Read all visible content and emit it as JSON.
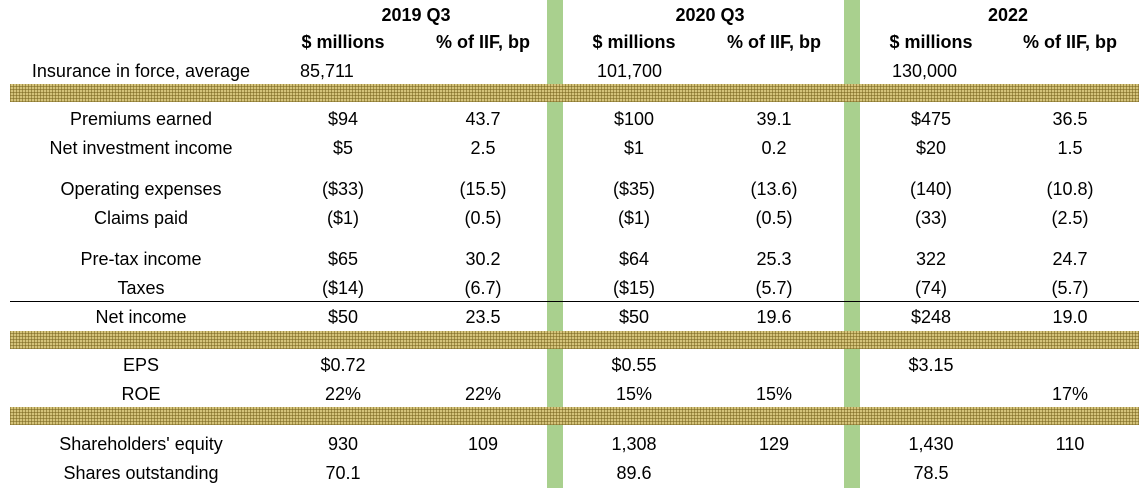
{
  "headers": {
    "periods": [
      "2019 Q3",
      "2020 Q3",
      "2022"
    ],
    "sub": [
      "$ millions",
      "% of IIF, bp"
    ]
  },
  "iif": {
    "label": "Insurance in force, average",
    "values": [
      "85,711",
      "101,700",
      "130,000"
    ]
  },
  "rows": [
    {
      "label": "Premiums earned",
      "cells": [
        "$94",
        "43.7",
        "$100",
        "39.1",
        "$475",
        "36.5"
      ]
    },
    {
      "label": "Net investment income",
      "cells": [
        "$5",
        "2.5",
        "$1",
        "0.2",
        "$20",
        "1.5"
      ]
    },
    {
      "label": "Operating expenses",
      "cells": [
        "($33)",
        "(15.5)",
        "($35)",
        "(13.6)",
        "(140)",
        "(10.8)"
      ]
    },
    {
      "label": "Claims paid",
      "cells": [
        "($1)",
        "(0.5)",
        "($1)",
        "(0.5)",
        "(33)",
        "(2.5)"
      ]
    },
    {
      "label": "Pre-tax income",
      "cells": [
        "$65",
        "30.2",
        "$64",
        "25.3",
        "322",
        "24.7"
      ]
    },
    {
      "label": "Taxes",
      "cells": [
        "($14)",
        "(6.7)",
        "($15)",
        "(5.7)",
        "(74)",
        "(5.7)"
      ]
    },
    {
      "label": "Net income",
      "cells": [
        "$50",
        "23.5",
        "$50",
        "19.6",
        "$248",
        "19.0"
      ]
    },
    {
      "label": "EPS",
      "cells": [
        "$0.72",
        "",
        "$0.55",
        "",
        "$3.15",
        ""
      ]
    },
    {
      "label": "ROE",
      "cells": [
        "22%",
        "22%",
        "15%",
        "15%",
        "",
        "17%"
      ]
    },
    {
      "label": "Shareholders' equity",
      "cells": [
        "930",
        "109",
        "1,308",
        "129",
        "1,430",
        "110"
      ]
    },
    {
      "label": "Shares outstanding",
      "cells": [
        "70.1",
        "",
        "89.6",
        "",
        "78.5",
        ""
      ]
    }
  ],
  "colors": {
    "separator_band": "#a9d08e",
    "hatch_band": "#d4c37a"
  }
}
